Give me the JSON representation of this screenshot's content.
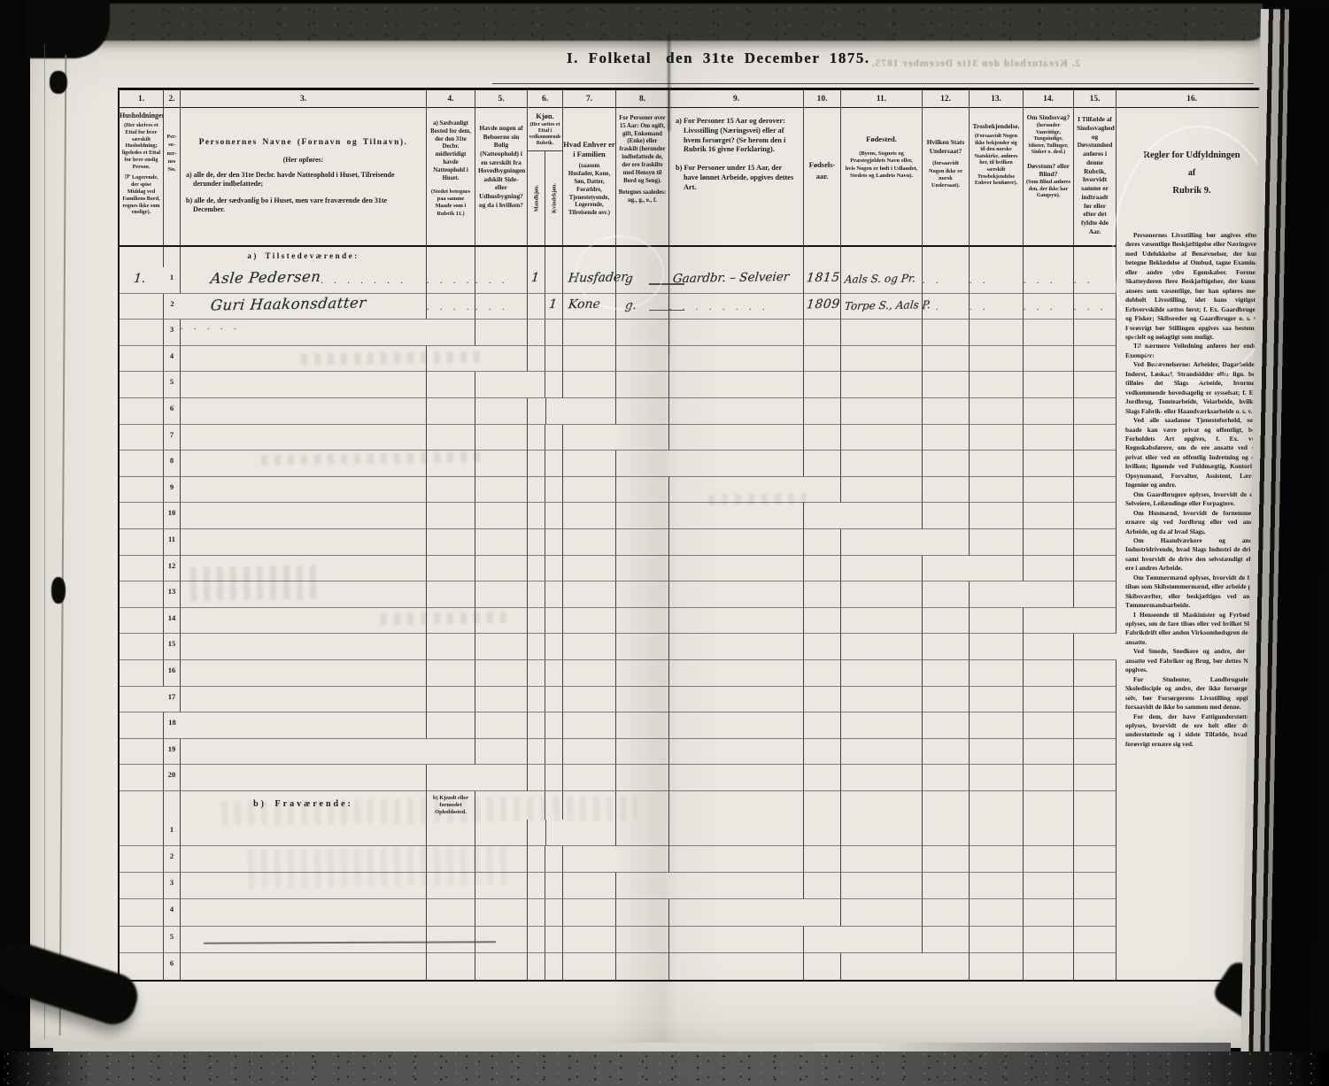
{
  "title": {
    "left": "I. Folketal",
    "right": "den 31te December 1875."
  },
  "bleedthrough_title": "2. Kreaturhold den 31te December 1875.",
  "sections": {
    "a_label": "a) Tilstedeværende:",
    "b_label": "b) Fraværende:",
    "b_note": "b) Kjendt eller formodet Opholdssted."
  },
  "columns": {
    "c1": {
      "num": "1.",
      "title": "Husholdninger.",
      "body1": "(Her skrives et Ettal for hver særskilt Husholdning; ligeledes et Ettal for hver enslig Person.",
      "hand": "☞",
      "body2": "Logerende, der spise Middag ved Familiens Bord, regnes ikke som enslige)."
    },
    "c2": {
      "num": "2.",
      "lines": [
        "Per-",
        "so-",
        "ner-",
        "nes",
        "No."
      ]
    },
    "c3": {
      "num": "3.",
      "title": "Personernes Navne (Fornavn og Tilnavn).",
      "sub": "(Her opføres:",
      "a": "a) alle de, der den 31te Decbr. havde Natteophold i Huset, Tilreisende derunder indbefattede;",
      "b": "b) alle de, der sædvanlig bo i Huset, men vare fraværende den 31te December."
    },
    "c4": {
      "num": "4.",
      "a": "a) Sædvanligt Bosted for dem, der den 31te Decbr. midlertidigt havde Natteophold i Huset.",
      "note": "(Stedet betegnes paa samme Maade som i Rubrik 11.)"
    },
    "c5": {
      "num": "5.",
      "body": "Havde nogen af Beboerne sin Bolig (Natteophold) i en særskilt fra Hovedbygningen adskilt Side- eller Udhusbygning? og da i hvilken?"
    },
    "c6": {
      "num": "6.",
      "title": "Kjøn.",
      "note": "(Her sættes et Ettal i vedkommende Rubrik.",
      "male": "Mandkjøn.",
      "female": "Kvindekjøn."
    },
    "c7": {
      "num": "7.",
      "title": "Hvad Enhver er i Familien",
      "note": "(saasom Husfader, Kone, Søn, Datter, Forældre, Tjenestetyende, Logerende, Tilreisende osv.)"
    },
    "c8": {
      "num": "8.",
      "body": "For Personer over 15 Aar: Om ugift, gift, Enkemand (Enke) eller fraskilt (herunder indbefattede de, der ere fraskilte med Hensyn til Bord og Seng).",
      "note": "Betegnes saaledes: ug., g., e., f."
    },
    "c9": {
      "num": "9.",
      "a": "a) For Personer 15 Aar og derover: Livsstilling (Næringsvei) eller af hvem forsørget? (Se herom den i Rubrik 16 givne Forklaring).",
      "b": "b) For Personer under 15 Aar, der have lønnet Arbeide, opgives dettes Art."
    },
    "c10": {
      "num": "10.",
      "line1": "Fødsels-",
      "line2": "aar."
    },
    "c11": {
      "num": "11.",
      "title": "Fødested.",
      "note": "(Byens, Sognets og Præstegjeldets Navn eller, hvis Nogen er født i Udlandet, Stedets og Landets Navn)."
    },
    "c12": {
      "num": "12.",
      "title": "Hvilken Stats Undersaat?",
      "note": "(forsaavidt Nogen ikke er norsk Undersaat)."
    },
    "c13": {
      "num": "13.",
      "title": "Trosbekjendelse.",
      "note": "(Forsaavidt Nogen ikke bekjender sig til den norske Statskirke, anføres her, til hvilken særskilt Trosbekjendelse Enhver henhører)."
    },
    "c14": {
      "num": "14.",
      "title": "Om Sindssvag?",
      "note": "(herunder Vanvittige, Tungsindige, Idioter, Tullinger, Sinker o. desl.)",
      "title2": "Døvstum? eller Blind?",
      "note2": "(Som Blind anføres den, der ikke har Gangsyn)."
    },
    "c15": {
      "num": "15.",
      "body": "I Tilfælde af Sindssvaghed og Døvstumhed anføres i denne Rubrik, hvorvidt samme er indtraadt før eller efter det fyldte 4de Aar."
    },
    "c16": {
      "num": "16.",
      "heading": [
        "Regler for Udfyldningen",
        "af",
        "Rubrik 9."
      ]
    }
  },
  "instructions": {
    "paragraphs": [
      "Personernes Livsstilling bør angives efter deres væsentlige Beskjæftigelse eller Næringsvei med Udelukkelse af Benævnelser, der kun betegne Beklædelse af Ombud, tagne Examina eller andre ydre Egenskaber. Forener Skatteyderen flere Beskjæftigelser, der kunne ansees som væsentlige, bør han opføres med dobbelt Livsstilling, idet hans vigtigste Erhvervskilde sættes først; f. Ex. Gaardbruger og Fisker; Skibsreder og Gaardbruger o. s. v. Forøvrigt bør Stillingen opgives saa bestemt, specielt og nøiagtigt som muligt.",
      "Til nærmere Veiledning anføres her endel Exempler:",
      "Ved Benævnelserne: Arbeider, Dagarbeider, Inderst, Løskarl, Strandsidder eller lign. bør tilføies det Slags Arbeide, hvormed vedkommende hovedsagelig er sysselsat; f. Ex. Jordbrug, Tomtearbeide, Veiarbeide, hvilket Slags Fabrik- eller Haandværksarbeide o. s. v.",
      "Ved alle saadanne Tjenesteforhold, som baade kan være privat og offentligt, bør Forholdets Art opgives, f. Ex. ved Regnskabsførere, om de ere ansatte ved en privat eller ved en offentlig Indretning og da hvilken; lignende ved Fuldmægtig, Kontorist, Opsynsmand, Forvalter, Assistent, Lærer, Ingeniør og andre.",
      "Om Gaardbrugere oplyses, hvorvidt de ere Selveiere, Leilændinge eller Forpagtere.",
      "Om Husmænd, hvorvidt de fornemmelig ernære sig ved Jordbrug eller ved andet Arbeide, og da af hvad Slags.",
      "Om Haandværkere og andre Industridrivende, hvad Slags Industri de drive, samt hvorvidt de drive den selvstændigt eller ere i andres Arbeide.",
      "Om Tømmermænd oplyses, hvorvidt de fare tilsøs som Skibstømmermænd, eller arbeide paa Skibsværfter, eller beskjæftiges ved andet Tømmermandsarbeide.",
      "I Henseende til Maskinister og Fyrbødere oplyses, om de fare tilsøs eller ved hvilket Slags Fabrikdrift eller anden Virksomhedsgren de ere ansatte.",
      "Ved Smede, Snedkere og andre, der ere ansatte ved Fabriker og Brug, bør dettes Navn opgives.",
      "For Studenter, Landbrugselever, Skoledisciple og andre, der ikke forsørge sig selv, bør Forsørgerens Livsstilling opgives, forsaavidt de ikke bo sammen med denne.",
      "For dem, der have Fattigunderstøttelse, oplyses, hvorvidt de ere helt eller delvis understøttede og i sidste Tilfælde, hvad de forøvrigt ernære sig ved."
    ]
  },
  "rows": {
    "a_count": 20,
    "b_count": 6,
    "entries": [
      {
        "row": 1,
        "household": "1.",
        "no": "1",
        "name": "Asle Pedersen",
        "male": "1",
        "female": "",
        "family": "Husfader",
        "status": "g",
        "occupation": "Gaardbr. – Selveier",
        "year": "1815",
        "place": "Aals S. og Pr.",
        "leaders": {
          "c3": ". . . . . . .",
          "c4": ". . . .",
          "c5": ". . .",
          "c12": ". .",
          "c13": ". .",
          "c14": ". . .",
          "c15": ". ."
        }
      },
      {
        "row": 2,
        "household": "",
        "no": "2",
        "name": "Guri Haakonsdatter",
        "male": "",
        "female": "1",
        "family": "Kone",
        "status": "g.",
        "occupation": "",
        "year": "1809",
        "place": "Torpe S., Aals P.",
        "leaders": {
          "c3": ". . . . .",
          "c4": ". . . .",
          "c5": ". . .",
          "c9": ". . . . . . . .",
          "c12": ". .",
          "c13": ". .",
          "c14": ". . .",
          "c15": ". . ."
        }
      }
    ]
  },
  "colors": {
    "paper": "#eae8e1",
    "ink": "#1a1a1a",
    "handwriting": "#26262e",
    "background": "#060606"
  }
}
